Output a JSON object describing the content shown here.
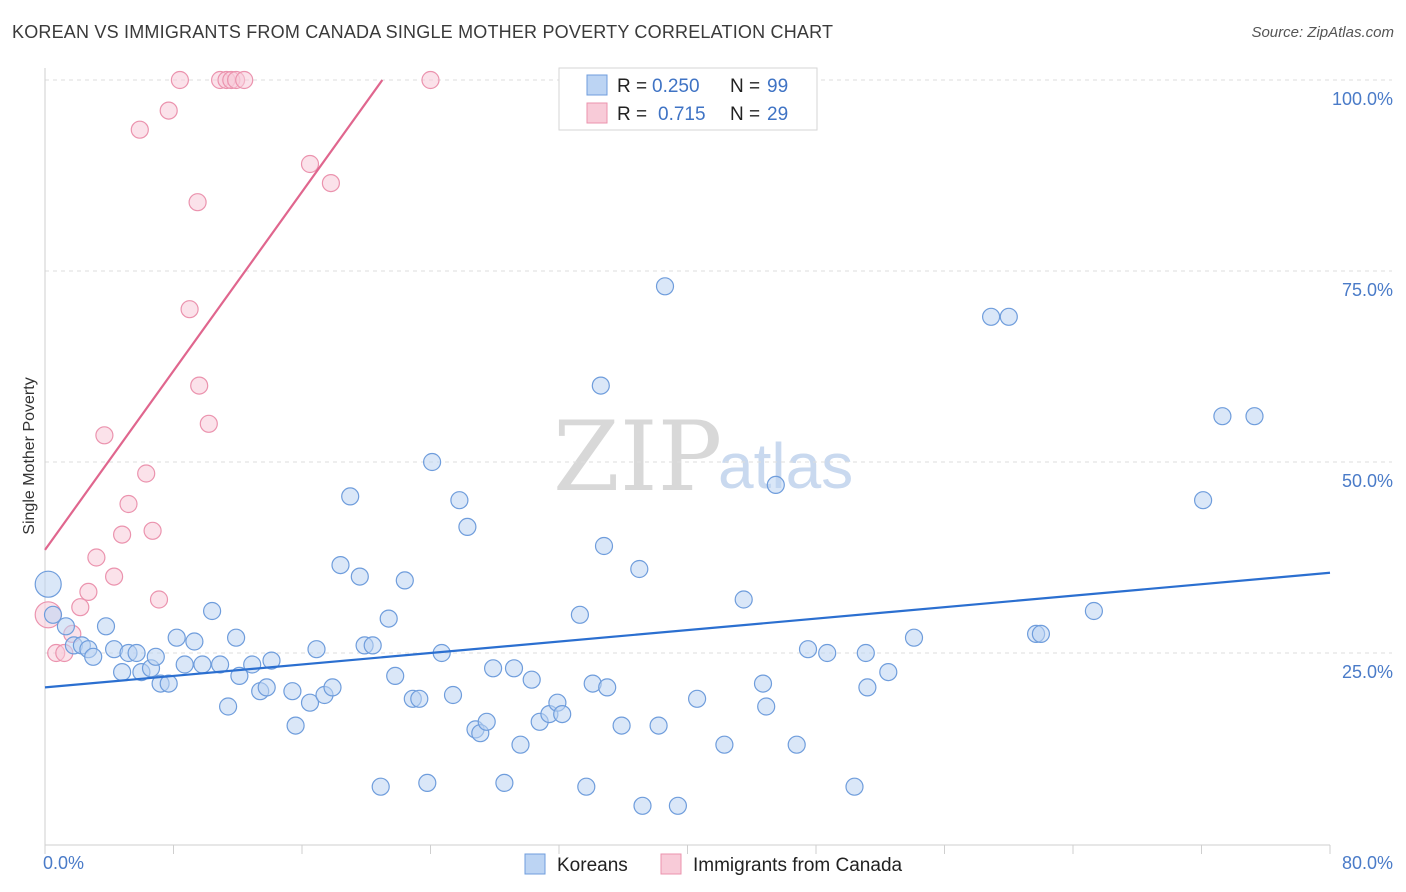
{
  "header": {
    "title": "KOREAN VS IMMIGRANTS FROM CANADA SINGLE MOTHER POVERTY CORRELATION CHART",
    "source": "Source: ZipAtlas.com"
  },
  "watermark": {
    "zip": "ZIP",
    "atlas": "atlas"
  },
  "legend_top": {
    "r_label": "R =",
    "n_label": "N =",
    "entries": [
      {
        "r": "0.250",
        "n": "99",
        "color": "#a8c6ef"
      },
      {
        "r": "0.715",
        "n": "29",
        "color": "#f4b8c9"
      }
    ]
  },
  "colors": {
    "koreans_fill": "#bcd4f3",
    "koreans_stroke": "#6f9ddc",
    "koreans_line": "#2b6fd0",
    "canada_fill": "#f8cbd8",
    "canada_stroke": "#eb93ae",
    "canada_line": "#e0668e"
  },
  "chart_data": {
    "type": "scatter",
    "title": "KOREAN VS IMMIGRANTS FROM CANADA SINGLE MOTHER POVERTY CORRELATION CHART",
    "xlabel": "",
    "ylabel": "Single Mother Poverty",
    "xlim": [
      0,
      80
    ],
    "ylim": [
      0,
      100
    ],
    "x_tick_labels": [
      "0.0%",
      "80.0%"
    ],
    "y_tick_values": [
      25,
      50,
      75,
      100
    ],
    "y_tick_labels": [
      "25.0%",
      "50.0%",
      "75.0%",
      "100.0%"
    ],
    "grid": "horizontal dashed",
    "legend": "top-center",
    "series": [
      {
        "name": "Koreans",
        "r": 0.25,
        "n": 99,
        "trend": {
          "x": [
            0,
            80
          ],
          "y": [
            20.5,
            35.5
          ]
        },
        "points": [
          [
            0.2,
            34.0
          ],
          [
            0.5,
            30.0
          ],
          [
            1.3,
            28.5
          ],
          [
            1.8,
            26.0
          ],
          [
            2.3,
            26.0
          ],
          [
            2.7,
            25.5
          ],
          [
            3.0,
            24.5
          ],
          [
            3.8,
            28.5
          ],
          [
            4.3,
            25.5
          ],
          [
            4.8,
            22.5
          ],
          [
            5.2,
            25.0
          ],
          [
            5.7,
            25.0
          ],
          [
            6.0,
            22.5
          ],
          [
            6.6,
            23.0
          ],
          [
            6.9,
            24.5
          ],
          [
            7.2,
            21.0
          ],
          [
            7.7,
            21.0
          ],
          [
            8.2,
            27.0
          ],
          [
            8.7,
            23.5
          ],
          [
            9.3,
            26.5
          ],
          [
            9.8,
            23.5
          ],
          [
            10.4,
            30.5
          ],
          [
            10.9,
            23.5
          ],
          [
            11.4,
            18.0
          ],
          [
            11.9,
            27.0
          ],
          [
            12.1,
            22.0
          ],
          [
            12.9,
            23.5
          ],
          [
            13.4,
            20.0
          ],
          [
            13.8,
            20.5
          ],
          [
            14.1,
            24.0
          ],
          [
            15.4,
            20.0
          ],
          [
            15.6,
            15.5
          ],
          [
            16.5,
            18.5
          ],
          [
            16.9,
            25.5
          ],
          [
            17.4,
            19.5
          ],
          [
            17.9,
            20.5
          ],
          [
            18.4,
            36.5
          ],
          [
            19.0,
            45.5
          ],
          [
            19.6,
            35.0
          ],
          [
            19.9,
            26.0
          ],
          [
            20.4,
            26.0
          ],
          [
            20.9,
            7.5
          ],
          [
            21.4,
            29.5
          ],
          [
            21.8,
            22.0
          ],
          [
            22.4,
            34.5
          ],
          [
            22.9,
            19.0
          ],
          [
            23.3,
            19.0
          ],
          [
            23.8,
            8.0
          ],
          [
            24.1,
            50.0
          ],
          [
            24.7,
            25.0
          ],
          [
            25.4,
            19.5
          ],
          [
            25.8,
            45.0
          ],
          [
            26.3,
            41.5
          ],
          [
            26.8,
            15.0
          ],
          [
            27.1,
            14.5
          ],
          [
            27.5,
            16.0
          ],
          [
            27.9,
            23.0
          ],
          [
            28.6,
            8.0
          ],
          [
            29.2,
            23.0
          ],
          [
            29.6,
            13.0
          ],
          [
            30.3,
            21.5
          ],
          [
            30.8,
            16.0
          ],
          [
            31.4,
            17.0
          ],
          [
            31.9,
            18.5
          ],
          [
            32.2,
            17.0
          ],
          [
            33.3,
            30.0
          ],
          [
            33.7,
            7.5
          ],
          [
            34.1,
            21.0
          ],
          [
            34.6,
            60.0
          ],
          [
            34.8,
            39.0
          ],
          [
            35.0,
            20.5
          ],
          [
            35.9,
            15.5
          ],
          [
            37.0,
            36.0
          ],
          [
            37.2,
            5.0
          ],
          [
            38.2,
            15.5
          ],
          [
            38.6,
            73.0
          ],
          [
            39.4,
            5.0
          ],
          [
            40.6,
            19.0
          ],
          [
            42.3,
            13.0
          ],
          [
            43.5,
            32.0
          ],
          [
            44.7,
            21.0
          ],
          [
            44.9,
            18.0
          ],
          [
            45.5,
            47.0
          ],
          [
            46.8,
            13.0
          ],
          [
            47.5,
            25.5
          ],
          [
            48.7,
            25.0
          ],
          [
            50.4,
            7.5
          ],
          [
            51.1,
            25.0
          ],
          [
            51.2,
            20.5
          ],
          [
            52.5,
            22.5
          ],
          [
            54.1,
            27.0
          ],
          [
            58.9,
            69.0
          ],
          [
            60.0,
            69.0
          ],
          [
            61.7,
            27.5
          ],
          [
            62.0,
            27.5
          ],
          [
            65.3,
            30.5
          ],
          [
            72.1,
            45.0
          ],
          [
            73.3,
            56.0
          ],
          [
            75.3,
            56.0
          ]
        ]
      },
      {
        "name": "Immigrants from Canada",
        "r": 0.715,
        "n": 29,
        "trend": {
          "x": [
            0,
            21
          ],
          "y": [
            38.5,
            100
          ]
        },
        "points": [
          [
            0.2,
            30.0
          ],
          [
            0.7,
            25.0
          ],
          [
            1.2,
            25.0
          ],
          [
            1.7,
            27.5
          ],
          [
            2.2,
            31.0
          ],
          [
            2.7,
            33.0
          ],
          [
            3.2,
            37.5
          ],
          [
            3.7,
            53.5
          ],
          [
            4.3,
            35.0
          ],
          [
            4.8,
            40.5
          ],
          [
            5.2,
            44.5
          ],
          [
            5.9,
            93.5
          ],
          [
            6.3,
            48.5
          ],
          [
            6.7,
            41.0
          ],
          [
            7.1,
            32.0
          ],
          [
            7.7,
            96.0
          ],
          [
            8.4,
            100.0
          ],
          [
            9.0,
            70.0
          ],
          [
            9.5,
            84.0
          ],
          [
            9.6,
            60.0
          ],
          [
            10.2,
            55.0
          ],
          [
            10.9,
            100.0
          ],
          [
            11.3,
            100.0
          ],
          [
            11.6,
            100.0
          ],
          [
            11.9,
            100.0
          ],
          [
            12.4,
            100.0
          ],
          [
            16.5,
            89.0
          ],
          [
            17.8,
            86.5
          ],
          [
            24.0,
            100.0
          ]
        ]
      }
    ]
  },
  "bottom_legend": [
    {
      "label": "Koreans"
    },
    {
      "label": "Immigrants from Canada"
    }
  ]
}
